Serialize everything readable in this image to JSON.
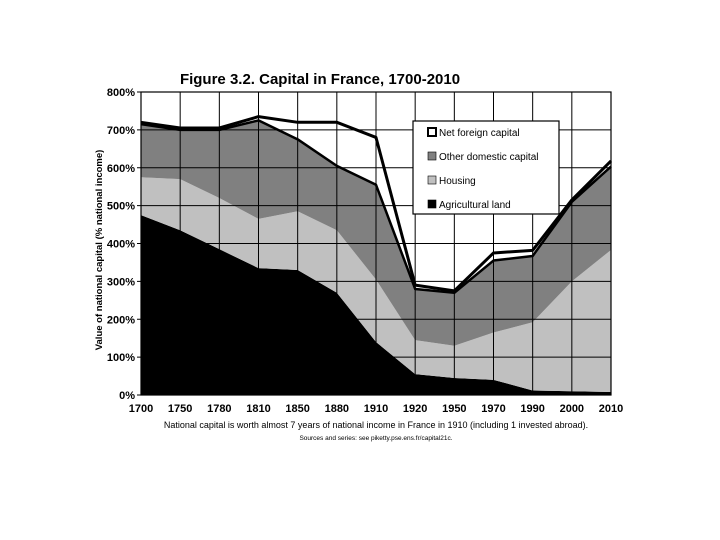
{
  "chart_data": {
    "type": "area",
    "title": "Figure 3.2. Capital in France, 1700-2010",
    "ylabel": "Value of national capital (% national income)",
    "xlabel": "",
    "note": "National capital is worth almost 7 years of national income in France in 1910 (including 1 invested abroad).",
    "source": "Sources and series: see piketty.pse.ens.fr/capital21c.",
    "x": [
      "1700",
      "1750",
      "1780",
      "1810",
      "1850",
      "1880",
      "1910",
      "1920",
      "1950",
      "1970",
      "1990",
      "2000",
      "2010"
    ],
    "y_ticks": [
      "0%",
      "100%",
      "200%",
      "300%",
      "400%",
      "500%",
      "600%",
      "700%",
      "800%"
    ],
    "ylim": [
      0,
      800
    ],
    "grid": true,
    "legend_position": "top-right",
    "stacked": true,
    "series": [
      {
        "name": "Agricultural land",
        "color": "#000000",
        "values": [
          475,
          435,
          385,
          335,
          330,
          270,
          140,
          55,
          45,
          40,
          12,
          10,
          8
        ]
      },
      {
        "name": "Housing",
        "color": "#c0c0c0",
        "values": [
          100,
          135,
          135,
          130,
          155,
          165,
          165,
          90,
          85,
          125,
          180,
          290,
          375
        ]
      },
      {
        "name": "Other domestic capital",
        "color": "#808080",
        "values": [
          140,
          130,
          180,
          260,
          190,
          170,
          250,
          135,
          140,
          190,
          175,
          210,
          220
        ]
      },
      {
        "name": "Net foreign capital",
        "color": "#ffffff",
        "values": [
          5,
          5,
          5,
          10,
          45,
          115,
          125,
          10,
          5,
          20,
          15,
          5,
          15
        ]
      }
    ]
  }
}
